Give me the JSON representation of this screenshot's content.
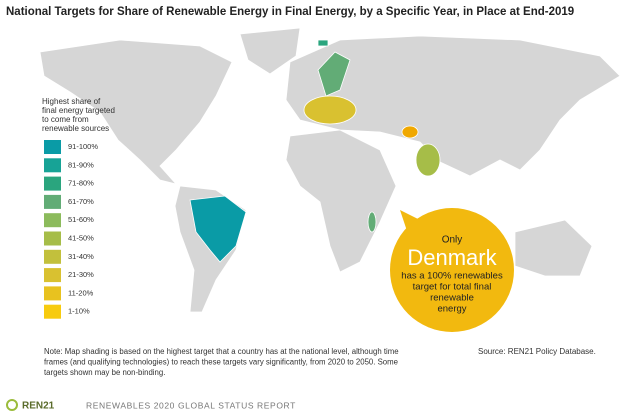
{
  "title": "National Targets for Share of Renewable Energy in Final Energy, by a Specific Year, in Place at End-2019",
  "legend": {
    "title_lines": [
      "Highest share of",
      "final energy targeted",
      "to come from",
      "renewable sources"
    ],
    "items": [
      {
        "label": "91-100%",
        "color": "#0a9ba6"
      },
      {
        "label": "81-90%",
        "color": "#17a396"
      },
      {
        "label": "71-80%",
        "color": "#2aa57e"
      },
      {
        "label": "61-70%",
        "color": "#62ac76"
      },
      {
        "label": "51-60%",
        "color": "#8cbb5c"
      },
      {
        "label": "41-50%",
        "color": "#a6bd48"
      },
      {
        "label": "31-40%",
        "color": "#c2c03c"
      },
      {
        "label": "21-30%",
        "color": "#d9c130"
      },
      {
        "label": "11-20%",
        "color": "#e8c21f"
      },
      {
        "label": "1-10%",
        "color": "#f7cb0e"
      }
    ]
  },
  "callout": {
    "intro": "Only",
    "highlight": "Denmark",
    "lines": [
      "has a 100% renewables",
      "target for total final",
      "renewable",
      "energy"
    ]
  },
  "note_lines": [
    "Note: Map shading is based on the highest target that a country has at the national level, although time",
    "frames (and qualifying technologies) to reach these targets vary significantly, from 2020 to 2050. Some",
    "targets shown may be non-binding."
  ],
  "source": "Source: REN21 Policy Database.",
  "footer": {
    "logo": "REN21",
    "report": "RENEWABLES 2020 GLOBAL STATUS REPORT"
  }
}
